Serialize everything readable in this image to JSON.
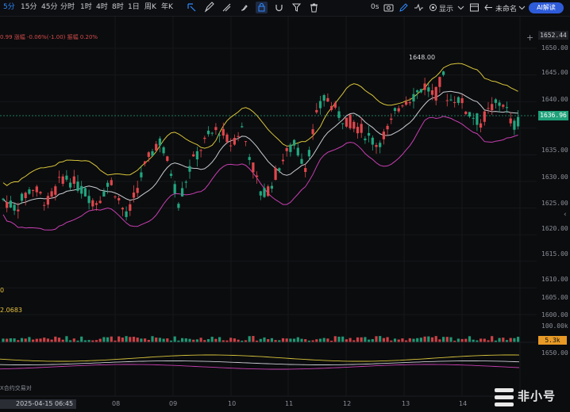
{
  "toolbar": {
    "timeframes": [
      "5分",
      "15分",
      "45分",
      "分时",
      "1时",
      "4时",
      "8时",
      "1日",
      "周K",
      "年K"
    ],
    "active_timeframe": "5分",
    "latency": "0s",
    "display_label": "显示",
    "unnamed_label": "未命名",
    "ai_button": "AI解读"
  },
  "indicator_line": "0.99  涨幅 -0.06%(-1.00)  振幅 0.20%",
  "price_axis": {
    "top_price": "1652.44",
    "current_price": "1636.96",
    "labels": [
      "1650.00",
      "1645.00",
      "1640.00",
      "1635.00",
      "1630.00",
      "1625.00",
      "1620.00",
      "1615.00",
      "1610.00",
      "1605.00",
      "1600.00",
      "100.00k",
      "1650.00"
    ],
    "volume_value": "5.3k"
  },
  "annotations": {
    "high_label": "1648.00",
    "left_value": "2.0683",
    "left_zero": "0",
    "sub_label": "X合约交易对"
  },
  "x_axis": {
    "time_badge": "2025-04-15 06:45",
    "labels": [
      "08",
      "09",
      "10",
      "11",
      "12",
      "13",
      "14"
    ]
  },
  "watermark": "非小号",
  "colors": {
    "up": "#21a67f",
    "down": "#e0474c",
    "boll_upper": "#d8c53a",
    "boll_mid": "#c9ccd1",
    "boll_lower": "#c83fb2",
    "accent": "#2e8bff"
  }
}
